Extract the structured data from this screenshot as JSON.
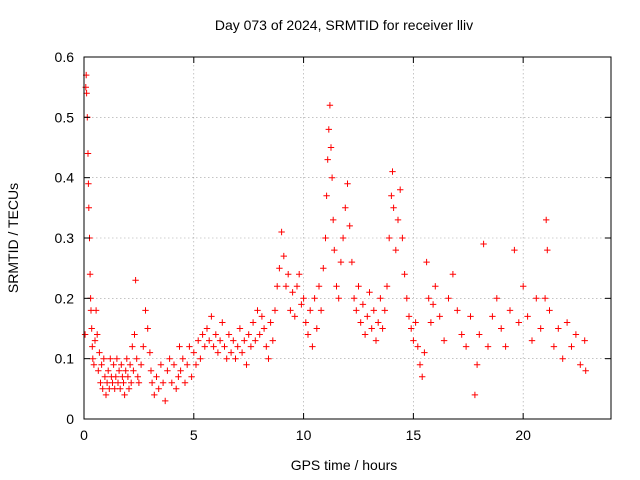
{
  "chart_data": {
    "type": "scatter",
    "title": "Day 073 of 2024, SRMTID for receiver lliv",
    "xlabel": "GPS time / hours",
    "ylabel": "SRMTID / TECUs",
    "xlim": [
      0,
      24
    ],
    "ylim": [
      0,
      0.6
    ],
    "xticks": [
      0,
      5,
      10,
      15,
      20
    ],
    "xtick_labels": [
      "0",
      "5",
      "10",
      "15",
      "20"
    ],
    "yticks": [
      0,
      0.1,
      0.2,
      0.3,
      0.4,
      0.5,
      0.6
    ],
    "ytick_labels": [
      "0",
      "0.1",
      "0.2",
      "0.3",
      "0.4",
      "0.5",
      "0.6"
    ],
    "grid": true,
    "marker": "+",
    "color": "#ff0000",
    "series": [
      {
        "name": "SRMTID",
        "points": [
          [
            0.05,
            0.14
          ],
          [
            0.08,
            0.55
          ],
          [
            0.1,
            0.57
          ],
          [
            0.12,
            0.54
          ],
          [
            0.15,
            0.5
          ],
          [
            0.18,
            0.44
          ],
          [
            0.2,
            0.39
          ],
          [
            0.22,
            0.35
          ],
          [
            0.25,
            0.3
          ],
          [
            0.28,
            0.24
          ],
          [
            0.3,
            0.2
          ],
          [
            0.32,
            0.18
          ],
          [
            0.35,
            0.15
          ],
          [
            0.38,
            0.12
          ],
          [
            0.4,
            0.1
          ],
          [
            0.45,
            0.09
          ],
          [
            0.5,
            0.13
          ],
          [
            0.55,
            0.18
          ],
          [
            0.6,
            0.14
          ],
          [
            0.65,
            0.08
          ],
          [
            0.7,
            0.11
          ],
          [
            0.75,
            0.06
          ],
          [
            0.8,
            0.09
          ],
          [
            0.85,
            0.05
          ],
          [
            0.9,
            0.1
          ],
          [
            0.95,
            0.07
          ],
          [
            1.0,
            0.04
          ],
          [
            1.05,
            0.06
          ],
          [
            1.1,
            0.08
          ],
          [
            1.15,
            0.05
          ],
          [
            1.2,
            0.1
          ],
          [
            1.25,
            0.07
          ],
          [
            1.3,
            0.06
          ],
          [
            1.35,
            0.09
          ],
          [
            1.4,
            0.05
          ],
          [
            1.45,
            0.07
          ],
          [
            1.5,
            0.1
          ],
          [
            1.55,
            0.06
          ],
          [
            1.6,
            0.08
          ],
          [
            1.65,
            0.05
          ],
          [
            1.7,
            0.09
          ],
          [
            1.75,
            0.07
          ],
          [
            1.8,
            0.06
          ],
          [
            1.85,
            0.04
          ],
          [
            1.9,
            0.08
          ],
          [
            1.95,
            0.1
          ],
          [
            2.0,
            0.07
          ],
          [
            2.05,
            0.05
          ],
          [
            2.1,
            0.09
          ],
          [
            2.15,
            0.06
          ],
          [
            2.2,
            0.12
          ],
          [
            2.25,
            0.08
          ],
          [
            2.3,
            0.14
          ],
          [
            2.35,
            0.23
          ],
          [
            2.4,
            0.1
          ],
          [
            2.45,
            0.07
          ],
          [
            2.5,
            0.06
          ],
          [
            2.6,
            0.09
          ],
          [
            2.7,
            0.12
          ],
          [
            2.8,
            0.18
          ],
          [
            2.9,
            0.15
          ],
          [
            3.0,
            0.11
          ],
          [
            3.05,
            0.08
          ],
          [
            3.1,
            0.06
          ],
          [
            3.2,
            0.04
          ],
          [
            3.3,
            0.07
          ],
          [
            3.4,
            0.05
          ],
          [
            3.5,
            0.09
          ],
          [
            3.6,
            0.06
          ],
          [
            3.7,
            0.03
          ],
          [
            3.8,
            0.08
          ],
          [
            3.9,
            0.1
          ],
          [
            4.0,
            0.06
          ],
          [
            4.1,
            0.09
          ],
          [
            4.2,
            0.05
          ],
          [
            4.3,
            0.07
          ],
          [
            4.35,
            0.12
          ],
          [
            4.4,
            0.08
          ],
          [
            4.5,
            0.1
          ],
          [
            4.6,
            0.06
          ],
          [
            4.7,
            0.09
          ],
          [
            4.8,
            0.12
          ],
          [
            4.9,
            0.07
          ],
          [
            5.0,
            0.11
          ],
          [
            5.1,
            0.09
          ],
          [
            5.2,
            0.13
          ],
          [
            5.3,
            0.1
          ],
          [
            5.4,
            0.14
          ],
          [
            5.5,
            0.12
          ],
          [
            5.6,
            0.15
          ],
          [
            5.7,
            0.13
          ],
          [
            5.8,
            0.17
          ],
          [
            5.9,
            0.12
          ],
          [
            6.0,
            0.14
          ],
          [
            6.1,
            0.11
          ],
          [
            6.2,
            0.13
          ],
          [
            6.3,
            0.16
          ],
          [
            6.4,
            0.12
          ],
          [
            6.5,
            0.1
          ],
          [
            6.6,
            0.14
          ],
          [
            6.7,
            0.11
          ],
          [
            6.8,
            0.13
          ],
          [
            6.9,
            0.1
          ],
          [
            7.0,
            0.12
          ],
          [
            7.1,
            0.15
          ],
          [
            7.2,
            0.11
          ],
          [
            7.3,
            0.13
          ],
          [
            7.4,
            0.09
          ],
          [
            7.5,
            0.14
          ],
          [
            7.6,
            0.12
          ],
          [
            7.7,
            0.16
          ],
          [
            7.8,
            0.13
          ],
          [
            7.9,
            0.18
          ],
          [
            8.0,
            0.14
          ],
          [
            8.1,
            0.17
          ],
          [
            8.2,
            0.15
          ],
          [
            8.3,
            0.12
          ],
          [
            8.4,
            0.1
          ],
          [
            8.5,
            0.16
          ],
          [
            8.6,
            0.13
          ],
          [
            8.7,
            0.18
          ],
          [
            8.8,
            0.22
          ],
          [
            8.9,
            0.25
          ],
          [
            9.0,
            0.31
          ],
          [
            9.1,
            0.27
          ],
          [
            9.2,
            0.22
          ],
          [
            9.3,
            0.24
          ],
          [
            9.4,
            0.18
          ],
          [
            9.5,
            0.21
          ],
          [
            9.6,
            0.17
          ],
          [
            9.7,
            0.22
          ],
          [
            9.8,
            0.24
          ],
          [
            9.9,
            0.19
          ],
          [
            10.0,
            0.2
          ],
          [
            10.1,
            0.16
          ],
          [
            10.2,
            0.14
          ],
          [
            10.3,
            0.18
          ],
          [
            10.4,
            0.12
          ],
          [
            10.5,
            0.2
          ],
          [
            10.6,
            0.15
          ],
          [
            10.7,
            0.22
          ],
          [
            10.8,
            0.18
          ],
          [
            10.9,
            0.25
          ],
          [
            11.0,
            0.3
          ],
          [
            11.05,
            0.37
          ],
          [
            11.1,
            0.43
          ],
          [
            11.15,
            0.48
          ],
          [
            11.2,
            0.52
          ],
          [
            11.25,
            0.45
          ],
          [
            11.3,
            0.4
          ],
          [
            11.35,
            0.33
          ],
          [
            11.4,
            0.28
          ],
          [
            11.5,
            0.22
          ],
          [
            11.6,
            0.2
          ],
          [
            11.7,
            0.26
          ],
          [
            11.8,
            0.3
          ],
          [
            11.9,
            0.35
          ],
          [
            12.0,
            0.39
          ],
          [
            12.1,
            0.32
          ],
          [
            12.2,
            0.26
          ],
          [
            12.3,
            0.2
          ],
          [
            12.4,
            0.18
          ],
          [
            12.5,
            0.22
          ],
          [
            12.6,
            0.16
          ],
          [
            12.7,
            0.19
          ],
          [
            12.8,
            0.14
          ],
          [
            12.9,
            0.17
          ],
          [
            13.0,
            0.21
          ],
          [
            13.1,
            0.15
          ],
          [
            13.2,
            0.18
          ],
          [
            13.3,
            0.13
          ],
          [
            13.4,
            0.16
          ],
          [
            13.5,
            0.2
          ],
          [
            13.6,
            0.15
          ],
          [
            13.7,
            0.18
          ],
          [
            13.8,
            0.22
          ],
          [
            13.9,
            0.3
          ],
          [
            14.0,
            0.37
          ],
          [
            14.05,
            0.41
          ],
          [
            14.1,
            0.35
          ],
          [
            14.2,
            0.28
          ],
          [
            14.3,
            0.33
          ],
          [
            14.4,
            0.38
          ],
          [
            14.5,
            0.3
          ],
          [
            14.6,
            0.24
          ],
          [
            14.7,
            0.2
          ],
          [
            14.8,
            0.17
          ],
          [
            14.9,
            0.15
          ],
          [
            15.0,
            0.13
          ],
          [
            15.1,
            0.16
          ],
          [
            15.2,
            0.12
          ],
          [
            15.3,
            0.09
          ],
          [
            15.4,
            0.07
          ],
          [
            15.5,
            0.11
          ],
          [
            15.6,
            0.26
          ],
          [
            15.7,
            0.2
          ],
          [
            15.8,
            0.16
          ],
          [
            15.9,
            0.19
          ],
          [
            16.0,
            0.22
          ],
          [
            16.2,
            0.17
          ],
          [
            16.4,
            0.13
          ],
          [
            16.6,
            0.2
          ],
          [
            16.8,
            0.24
          ],
          [
            17.0,
            0.18
          ],
          [
            17.2,
            0.14
          ],
          [
            17.4,
            0.12
          ],
          [
            17.6,
            0.17
          ],
          [
            17.8,
            0.04
          ],
          [
            17.9,
            0.09
          ],
          [
            18.0,
            0.14
          ],
          [
            18.2,
            0.29
          ],
          [
            18.4,
            0.12
          ],
          [
            18.6,
            0.17
          ],
          [
            18.8,
            0.2
          ],
          [
            19.0,
            0.15
          ],
          [
            19.2,
            0.12
          ],
          [
            19.4,
            0.18
          ],
          [
            19.6,
            0.28
          ],
          [
            19.8,
            0.16
          ],
          [
            20.0,
            0.22
          ],
          [
            20.2,
            0.17
          ],
          [
            20.4,
            0.13
          ],
          [
            20.6,
            0.2
          ],
          [
            20.8,
            0.15
          ],
          [
            21.0,
            0.2
          ],
          [
            21.05,
            0.33
          ],
          [
            21.1,
            0.28
          ],
          [
            21.2,
            0.18
          ],
          [
            21.4,
            0.12
          ],
          [
            21.6,
            0.15
          ],
          [
            21.8,
            0.1
          ],
          [
            22.0,
            0.16
          ],
          [
            22.2,
            0.12
          ],
          [
            22.4,
            0.14
          ],
          [
            22.6,
            0.09
          ],
          [
            22.8,
            0.13
          ],
          [
            22.85,
            0.08
          ]
        ]
      }
    ]
  }
}
